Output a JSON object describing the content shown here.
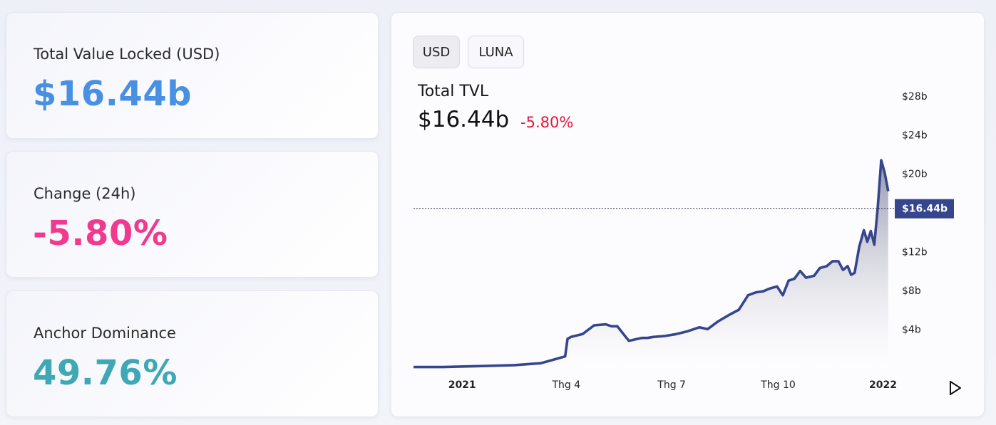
{
  "cards": {
    "tvl": {
      "label": "Total Value Locked (USD)",
      "value": "$16.44b",
      "color": "#4a90e2"
    },
    "change": {
      "label": "Change (24h)",
      "value": "-5.80%",
      "color": "#f0398f"
    },
    "dominance": {
      "label": "Anchor Dominance",
      "value": "49.76%",
      "color": "#3ea8b5"
    }
  },
  "chart_panel": {
    "toggles": [
      {
        "label": "USD",
        "active": true
      },
      {
        "label": "LUNA",
        "active": false
      }
    ],
    "title": "Total TVL",
    "current_value": "$16.44b",
    "change": "-5.80%",
    "change_color": "#e5173b",
    "play_icon": "play-icon"
  },
  "chart_data": {
    "type": "area",
    "title": "Total TVL",
    "line_color": "#36468c",
    "current_price_label": "$16.44b",
    "current_price": 16.44,
    "y_ticks": [
      {
        "label": "$4b",
        "value": 4
      },
      {
        "label": "$8b",
        "value": 8
      },
      {
        "label": "$12b",
        "value": 12
      },
      {
        "label": "$20b",
        "value": 20
      },
      {
        "label": "$24b",
        "value": 24
      },
      {
        "label": "$28b",
        "value": 28
      }
    ],
    "x_ticks": [
      {
        "label": "2021",
        "value": "2021-01-01",
        "bold": true
      },
      {
        "label": "Thg 4",
        "value": "2021-04-01",
        "bold": false
      },
      {
        "label": "Thg 7",
        "value": "2021-07-01",
        "bold": false
      },
      {
        "label": "Thg 10",
        "value": "2021-10-01",
        "bold": false
      },
      {
        "label": "2022",
        "value": "2022-01-01",
        "bold": true
      }
    ],
    "x_range": [
      "2020-11-20",
      "2022-01-06"
    ],
    "ylim": [
      0,
      28
    ],
    "x": [
      "2020-11-20",
      "2020-12-15",
      "2021-01-15",
      "2021-02-15",
      "2021-03-10",
      "2021-03-25",
      "2021-03-31",
      "2021-04-02",
      "2021-04-05",
      "2021-04-15",
      "2021-04-25",
      "2021-05-05",
      "2021-05-10",
      "2021-05-15",
      "2021-05-25",
      "2021-06-05",
      "2021-06-10",
      "2021-06-15",
      "2021-06-25",
      "2021-07-05",
      "2021-07-15",
      "2021-07-25",
      "2021-08-01",
      "2021-08-10",
      "2021-08-20",
      "2021-08-28",
      "2021-09-05",
      "2021-09-12",
      "2021-09-18",
      "2021-09-24",
      "2021-09-30",
      "2021-10-05",
      "2021-10-10",
      "2021-10-15",
      "2021-10-20",
      "2021-10-25",
      "2021-11-01",
      "2021-11-06",
      "2021-11-12",
      "2021-11-17",
      "2021-11-22",
      "2021-11-26",
      "2021-11-30",
      "2021-12-03",
      "2021-12-06",
      "2021-12-10",
      "2021-12-14",
      "2021-12-17",
      "2021-12-20",
      "2021-12-23",
      "2021-12-26",
      "2021-12-29",
      "2022-01-01",
      "2022-01-04"
    ],
    "values": [
      0.1,
      0.1,
      0.2,
      0.3,
      0.5,
      1.0,
      1.2,
      3.0,
      3.2,
      3.5,
      4.4,
      4.5,
      4.3,
      4.3,
      2.8,
      3.1,
      3.1,
      3.2,
      3.3,
      3.5,
      3.8,
      4.2,
      4.0,
      4.8,
      5.5,
      6.0,
      7.5,
      7.8,
      7.9,
      8.2,
      8.4,
      7.5,
      9.0,
      9.2,
      10.0,
      9.3,
      9.5,
      10.3,
      10.5,
      11.0,
      11.0,
      10.1,
      10.5,
      9.6,
      9.8,
      12.5,
      14.2,
      13.0,
      14.1,
      12.7,
      16.5,
      21.4,
      20.1,
      18.2
    ]
  }
}
